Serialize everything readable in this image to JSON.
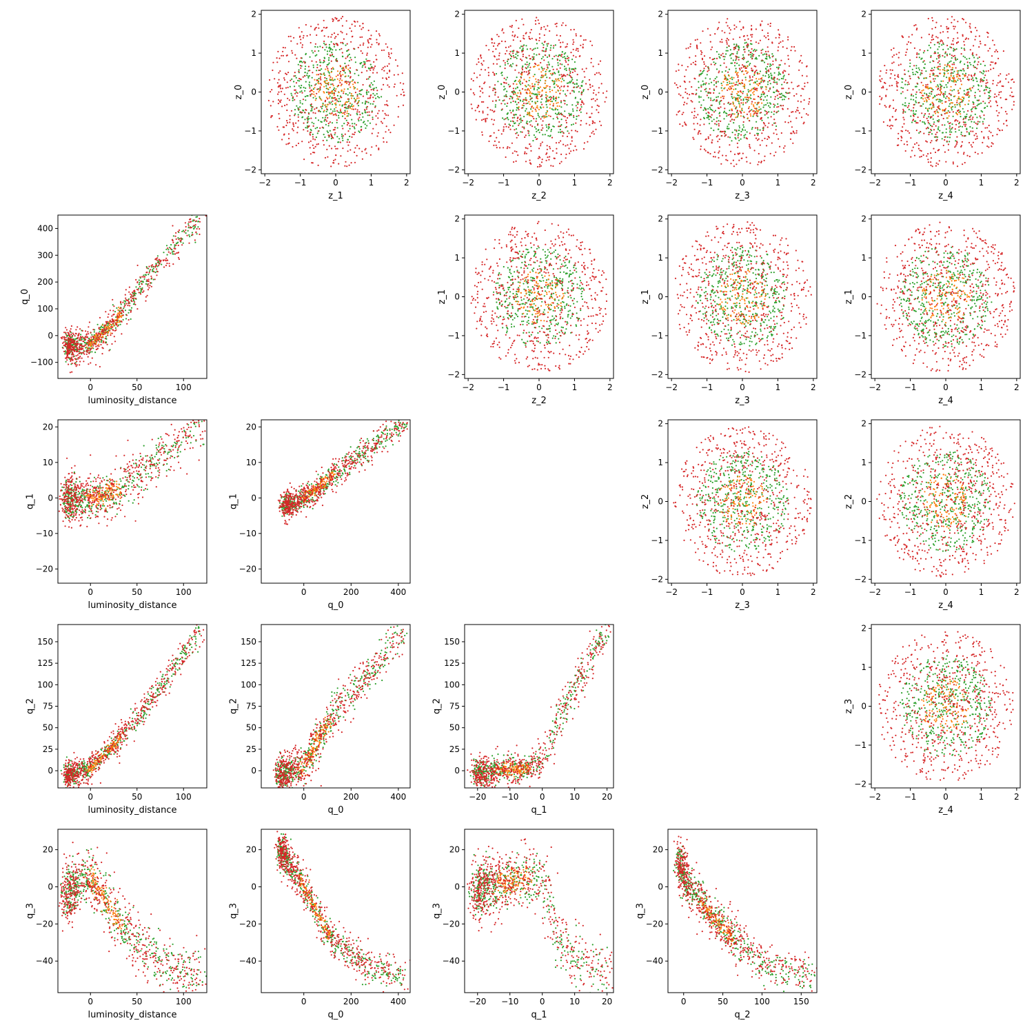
{
  "chart_data": {
    "type": "scatter",
    "grid": false,
    "colors": {
      "green": "#2ca02c",
      "orange": "#ff7f0e",
      "red": "#d62728"
    },
    "series_colors": [
      "#2ca02c",
      "#ff7f0e",
      "#d62728"
    ],
    "panels": [
      {
        "id": "z_0-vs-z_1",
        "xlabel": "z_1",
        "ylabel": "z_0",
        "xlim": [
          -2.1,
          2.1
        ],
        "ylim": [
          -2.1,
          2.1
        ],
        "xticks": [
          -2,
          -1,
          0,
          1,
          2
        ],
        "yticks": [
          -2,
          -1,
          0,
          1,
          2
        ],
        "shape": "disk",
        "center": [
          0,
          0
        ],
        "spread": [
          0.9,
          0.9
        ]
      },
      {
        "id": "z_0-vs-z_2",
        "xlabel": "z_2",
        "ylabel": "z_0",
        "xlim": [
          -2.1,
          2.1
        ],
        "ylim": [
          -2.1,
          2.1
        ],
        "xticks": [
          -2,
          -1,
          0,
          1,
          2
        ],
        "yticks": [
          -2,
          -1,
          0,
          1,
          2
        ],
        "shape": "disk",
        "center": [
          0,
          0
        ],
        "spread": [
          0.9,
          0.9
        ]
      },
      {
        "id": "z_0-vs-z_3",
        "xlabel": "z_3",
        "ylabel": "z_0",
        "xlim": [
          -2.1,
          2.1
        ],
        "ylim": [
          -2.1,
          2.1
        ],
        "xticks": [
          -2,
          -1,
          0,
          1,
          2
        ],
        "yticks": [
          -2,
          -1,
          0,
          1,
          2
        ],
        "shape": "disk",
        "center": [
          0,
          0
        ],
        "spread": [
          0.9,
          0.9
        ]
      },
      {
        "id": "z_0-vs-z_4",
        "xlabel": "z_4",
        "ylabel": "z_0",
        "xlim": [
          -2.1,
          2.1
        ],
        "ylim": [
          -2.1,
          2.1
        ],
        "xticks": [
          -2,
          -1,
          0,
          1,
          2
        ],
        "yticks": [
          -2,
          -1,
          0,
          1,
          2
        ],
        "shape": "disk",
        "center": [
          0,
          0
        ],
        "spread": [
          0.9,
          0.9
        ]
      },
      {
        "id": "q_0-vs-luminosity_distance",
        "xlabel": "luminosity_distance",
        "ylabel": "q_0",
        "xlim": [
          -35,
          125
        ],
        "ylim": [
          -160,
          450
        ],
        "xticks": [
          0,
          50,
          100
        ],
        "yticks": [
          -100,
          0,
          100,
          200,
          300,
          400
        ],
        "shape": "band",
        "trend": [
          [
            -25,
            -40
          ],
          [
            0,
            -30
          ],
          [
            20,
            30
          ],
          [
            40,
            110
          ],
          [
            70,
            260
          ],
          [
            120,
            440
          ]
        ],
        "spread": [
          6,
          30
        ]
      },
      {
        "id": "z_1-vs-z_2",
        "xlabel": "z_2",
        "ylabel": "z_1",
        "xlim": [
          -2.1,
          2.1
        ],
        "ylim": [
          -2.1,
          2.1
        ],
        "xticks": [
          -2,
          -1,
          0,
          1,
          2
        ],
        "yticks": [
          -2,
          -1,
          0,
          1,
          2
        ],
        "shape": "disk",
        "center": [
          0,
          0
        ],
        "spread": [
          0.9,
          0.9
        ]
      },
      {
        "id": "z_1-vs-z_3",
        "xlabel": "z_3",
        "ylabel": "z_1",
        "xlim": [
          -2.1,
          2.1
        ],
        "ylim": [
          -2.1,
          2.1
        ],
        "xticks": [
          -2,
          -1,
          0,
          1,
          2
        ],
        "yticks": [
          -2,
          -1,
          0,
          1,
          2
        ],
        "shape": "disk",
        "center": [
          0,
          0
        ],
        "spread": [
          0.9,
          0.9
        ]
      },
      {
        "id": "z_1-vs-z_4",
        "xlabel": "z_4",
        "ylabel": "z_1",
        "xlim": [
          -2.1,
          2.1
        ],
        "ylim": [
          -2.1,
          2.1
        ],
        "xticks": [
          -2,
          -1,
          0,
          1,
          2
        ],
        "yticks": [
          -2,
          -1,
          0,
          1,
          2
        ],
        "shape": "disk",
        "center": [
          0,
          0
        ],
        "spread": [
          0.9,
          0.9
        ]
      },
      {
        "id": "q_1-vs-luminosity_distance",
        "xlabel": "luminosity_distance",
        "ylabel": "q_1",
        "xlim": [
          -35,
          125
        ],
        "ylim": [
          -24,
          22
        ],
        "xticks": [
          0,
          50,
          100
        ],
        "yticks": [
          -20,
          -10,
          0,
          10,
          20
        ],
        "shape": "band",
        "trend": [
          [
            -25,
            0
          ],
          [
            0,
            0
          ],
          [
            30,
            2
          ],
          [
            60,
            8
          ],
          [
            90,
            14
          ],
          [
            120,
            21
          ]
        ],
        "spread": [
          8,
          3.5
        ]
      },
      {
        "id": "q_1-vs-q_0",
        "xlabel": "q_0",
        "ylabel": "q_1",
        "xlim": [
          -180,
          450
        ],
        "ylim": [
          -24,
          22
        ],
        "xticks": [
          0,
          200,
          400
        ],
        "yticks": [
          -20,
          -10,
          0,
          10,
          20
        ],
        "shape": "band",
        "trend": [
          [
            -80,
            -2
          ],
          [
            0,
            0
          ],
          [
            100,
            5
          ],
          [
            200,
            10
          ],
          [
            300,
            15
          ],
          [
            430,
            21
          ]
        ],
        "spread": [
          25,
          2
        ]
      },
      {
        "id": "z_2-vs-z_3",
        "xlabel": "z_3",
        "ylabel": "z_2",
        "xlim": [
          -2.1,
          2.1
        ],
        "ylim": [
          -2.1,
          2.1
        ],
        "xticks": [
          -2,
          -1,
          0,
          1,
          2
        ],
        "yticks": [
          -2,
          -1,
          0,
          1,
          2
        ],
        "shape": "disk",
        "center": [
          0,
          0
        ],
        "spread": [
          0.9,
          0.9
        ]
      },
      {
        "id": "z_2-vs-z_4",
        "xlabel": "z_4",
        "ylabel": "z_2",
        "xlim": [
          -2.1,
          2.1
        ],
        "ylim": [
          -2.1,
          2.1
        ],
        "xticks": [
          -2,
          -1,
          0,
          1,
          2
        ],
        "yticks": [
          -2,
          -1,
          0,
          1,
          2
        ],
        "shape": "disk",
        "center": [
          0,
          0
        ],
        "spread": [
          0.9,
          0.9
        ]
      },
      {
        "id": "q_2-vs-luminosity_distance",
        "xlabel": "luminosity_distance",
        "ylabel": "q_2",
        "xlim": [
          -35,
          125
        ],
        "ylim": [
          -20,
          170
        ],
        "xticks": [
          0,
          50,
          100
        ],
        "yticks": [
          0,
          25,
          50,
          75,
          100,
          125,
          150
        ],
        "shape": "band",
        "trend": [
          [
            -25,
            -5
          ],
          [
            0,
            2
          ],
          [
            25,
            30
          ],
          [
            50,
            60
          ],
          [
            80,
            105
          ],
          [
            120,
            165
          ]
        ],
        "spread": [
          5,
          8
        ]
      },
      {
        "id": "q_2-vs-q_0",
        "xlabel": "q_0",
        "ylabel": "q_2",
        "xlim": [
          -180,
          450
        ],
        "ylim": [
          -20,
          170
        ],
        "xticks": [
          0,
          200,
          400
        ],
        "yticks": [
          0,
          25,
          50,
          75,
          100,
          125,
          150
        ],
        "shape": "band",
        "trend": [
          [
            -100,
            -5
          ],
          [
            0,
            5
          ],
          [
            50,
            30
          ],
          [
            150,
            75
          ],
          [
            300,
            120
          ],
          [
            430,
            165
          ]
        ],
        "spread": [
          30,
          12
        ]
      },
      {
        "id": "q_2-vs-q_1",
        "xlabel": "q_1",
        "ylabel": "q_2",
        "xlim": [
          -24,
          22
        ],
        "ylim": [
          -20,
          170
        ],
        "xticks": [
          -20,
          -10,
          0,
          10,
          20
        ],
        "yticks": [
          0,
          25,
          50,
          75,
          100,
          125,
          150
        ],
        "shape": "band",
        "trend": [
          [
            -20,
            -2
          ],
          [
            -5,
            2
          ],
          [
            0,
            10
          ],
          [
            5,
            60
          ],
          [
            12,
            110
          ],
          [
            20,
            165
          ]
        ],
        "spread": [
          2.5,
          10
        ]
      },
      {
        "id": "z_3-vs-z_4",
        "xlabel": "z_4",
        "ylabel": "z_3",
        "xlim": [
          -2.1,
          2.1
        ],
        "ylim": [
          -2.1,
          2.1
        ],
        "xticks": [
          -2,
          -1,
          0,
          1,
          2
        ],
        "yticks": [
          -2,
          -1,
          0,
          1,
          2
        ],
        "shape": "disk",
        "center": [
          0,
          0
        ],
        "spread": [
          0.9,
          0.9
        ]
      },
      {
        "id": "q_3-vs-luminosity_distance",
        "xlabel": "luminosity_distance",
        "ylabel": "q_3",
        "xlim": [
          -35,
          125
        ],
        "ylim": [
          -57,
          31
        ],
        "xticks": [
          0,
          50,
          100
        ],
        "yticks": [
          -40,
          -20,
          0,
          20
        ],
        "shape": "band",
        "trend": [
          [
            -25,
            -3
          ],
          [
            0,
            5
          ],
          [
            25,
            -15
          ],
          [
            50,
            -30
          ],
          [
            80,
            -42
          ],
          [
            120,
            -48
          ]
        ],
        "spread": [
          10,
          8
        ]
      },
      {
        "id": "q_3-vs-q_0",
        "xlabel": "q_0",
        "ylabel": "q_3",
        "xlim": [
          -180,
          450
        ],
        "ylim": [
          -57,
          31
        ],
        "xticks": [
          0,
          200,
          400
        ],
        "yticks": [
          -40,
          -20,
          0,
          20
        ],
        "shape": "band",
        "trend": [
          [
            -100,
            20
          ],
          [
            -50,
            10
          ],
          [
            0,
            0
          ],
          [
            100,
            -25
          ],
          [
            250,
            -42
          ],
          [
            430,
            -48
          ]
        ],
        "spread": [
          20,
          5
        ]
      },
      {
        "id": "q_3-vs-q_1",
        "xlabel": "q_1",
        "ylabel": "q_3",
        "xlim": [
          -24,
          22
        ],
        "ylim": [
          -57,
          31
        ],
        "xticks": [
          -20,
          -10,
          0,
          10,
          20
        ],
        "yticks": [
          -40,
          -20,
          0,
          20
        ],
        "shape": "band",
        "trend": [
          [
            -20,
            -2
          ],
          [
            -5,
            5
          ],
          [
            0,
            5
          ],
          [
            5,
            -30
          ],
          [
            12,
            -42
          ],
          [
            20,
            -48
          ]
        ],
        "spread": [
          3,
          9
        ]
      },
      {
        "id": "q_3-vs-q_2",
        "xlabel": "q_2",
        "ylabel": "q_3",
        "xlim": [
          -20,
          170
        ],
        "ylim": [
          -57,
          31
        ],
        "xticks": [
          0,
          50,
          100,
          150
        ],
        "yticks": [
          -40,
          -20,
          0,
          20
        ],
        "shape": "band",
        "trend": [
          [
            -5,
            15
          ],
          [
            0,
            5
          ],
          [
            25,
            -10
          ],
          [
            50,
            -22
          ],
          [
            100,
            -42
          ],
          [
            165,
            -48
          ]
        ],
        "spread": [
          8,
          6
        ]
      }
    ]
  }
}
